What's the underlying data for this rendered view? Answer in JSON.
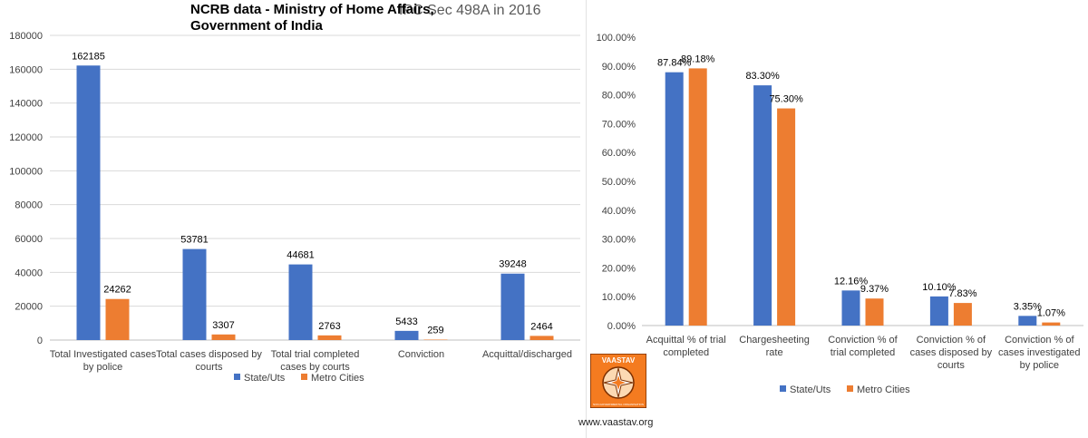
{
  "chart_data": [
    {
      "type": "bar",
      "title": "IPC Sec 498A in 2016",
      "categories": [
        [
          "Total Investigated cases",
          "by police"
        ],
        [
          "Total cases disposed by",
          "courts"
        ],
        [
          "Total  trial completed",
          "cases by courts"
        ],
        [
          "Conviction"
        ],
        [
          "Acquittal/discharged"
        ]
      ],
      "series": [
        {
          "name": "State/Uts",
          "color": "#4472c4",
          "values": [
            162185,
            53781,
            44681,
            5433,
            39248
          ],
          "labels": [
            "162185",
            "53781",
            "44681",
            "5433",
            "39248"
          ]
        },
        {
          "name": "Metro Cities",
          "color": "#ed7d31",
          "values": [
            24262,
            3307,
            2763,
            259,
            2464
          ],
          "labels": [
            "24262",
            "3307",
            "2763",
            "259",
            "2464"
          ]
        }
      ],
      "ylim": [
        0,
        180000
      ],
      "yticks": [
        0,
        20000,
        40000,
        60000,
        80000,
        100000,
        120000,
        140000,
        160000,
        180000
      ],
      "ytick_labels": [
        "0",
        "20000",
        "40000",
        "60000",
        "80000",
        "100000",
        "120000",
        "140000",
        "160000",
        "180000"
      ],
      "grid": true,
      "legend": "bottom-center"
    },
    {
      "type": "bar",
      "title": "NCRB data - Ministry of Home Affairs, Government of India",
      "title_lines": [
        "NCRB data - Ministry of Home Affairs,",
        "Government of India"
      ],
      "categories": [
        [
          "Acquittal % of trial",
          "completed"
        ],
        [
          "Chargesheeting",
          "rate"
        ],
        [
          "Conviction % of",
          "trial completed"
        ],
        [
          "Conviction % of",
          "cases disposed by",
          "courts"
        ],
        [
          "Conviction % of",
          "cases investigated",
          "by police"
        ]
      ],
      "series": [
        {
          "name": "State/Uts",
          "color": "#4472c4",
          "values": [
            87.84,
            83.3,
            12.16,
            10.1,
            3.35
          ],
          "labels": [
            "87.84%",
            "83.30%",
            "12.16%",
            "10.10%",
            "3.35%"
          ]
        },
        {
          "name": "Metro Cities",
          "color": "#ed7d31",
          "values": [
            89.18,
            75.3,
            9.37,
            7.83,
            1.07
          ],
          "labels": [
            "89.18%",
            "75.30%",
            "9.37%",
            "7.83%",
            "1.07%"
          ]
        }
      ],
      "ylim": [
        0,
        100
      ],
      "yticks": [
        0,
        10,
        20,
        30,
        40,
        50,
        60,
        70,
        80,
        90,
        100
      ],
      "ytick_labels": [
        "0.00%",
        "10.00%",
        "20.00%",
        "30.00%",
        "40.00%",
        "50.00%",
        "60.00%",
        "70.00%",
        "80.00%",
        "90.00%",
        "100.00%"
      ],
      "grid": false,
      "legend": "bottom-center"
    }
  ],
  "logo": {
    "name": "VAASTAV",
    "tagline": "NON-GOVERNMENTAL ORGANISATION"
  },
  "footer": {
    "website": "www.vaastav.org"
  }
}
